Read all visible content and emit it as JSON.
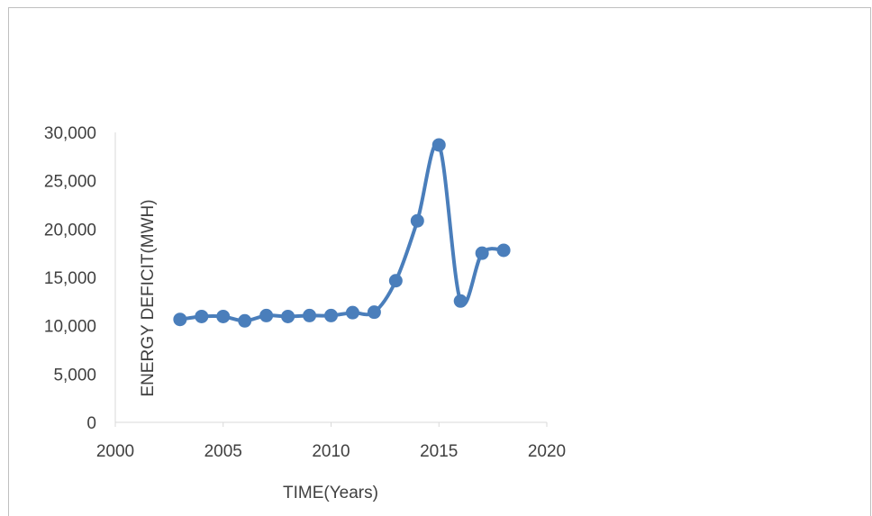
{
  "caption_fragment": "",
  "chart_data": {
    "type": "scatter",
    "mode": "smooth-line-with-markers",
    "title": "",
    "xlabel": "TIME(Years)",
    "ylabel": "ENERGY DEFICIT(MWH)",
    "xlim": [
      2000,
      2020
    ],
    "ylim": [
      0,
      30000
    ],
    "x_ticks": [
      "2000",
      "2005",
      "2010",
      "2015",
      "2020"
    ],
    "y_ticks": [
      "0",
      "5,000",
      "10,000",
      "15,000",
      "20,000",
      "25,000",
      "30,000"
    ],
    "x": [
      2003,
      2004,
      2005,
      2006,
      2007,
      2008,
      2009,
      2010,
      2011,
      2012,
      2013,
      2014,
      2015,
      2016,
      2017,
      2018
    ],
    "y": [
      10650,
      10950,
      10950,
      10500,
      11050,
      10950,
      11050,
      11050,
      11350,
      11400,
      14650,
      20850,
      28700,
      12550,
      17500,
      17800
    ],
    "grid": false,
    "legend": "none",
    "series_color": "#4a7ebb",
    "axis_color": "#d9d9d9",
    "frame_color": "#bfbfbf"
  }
}
